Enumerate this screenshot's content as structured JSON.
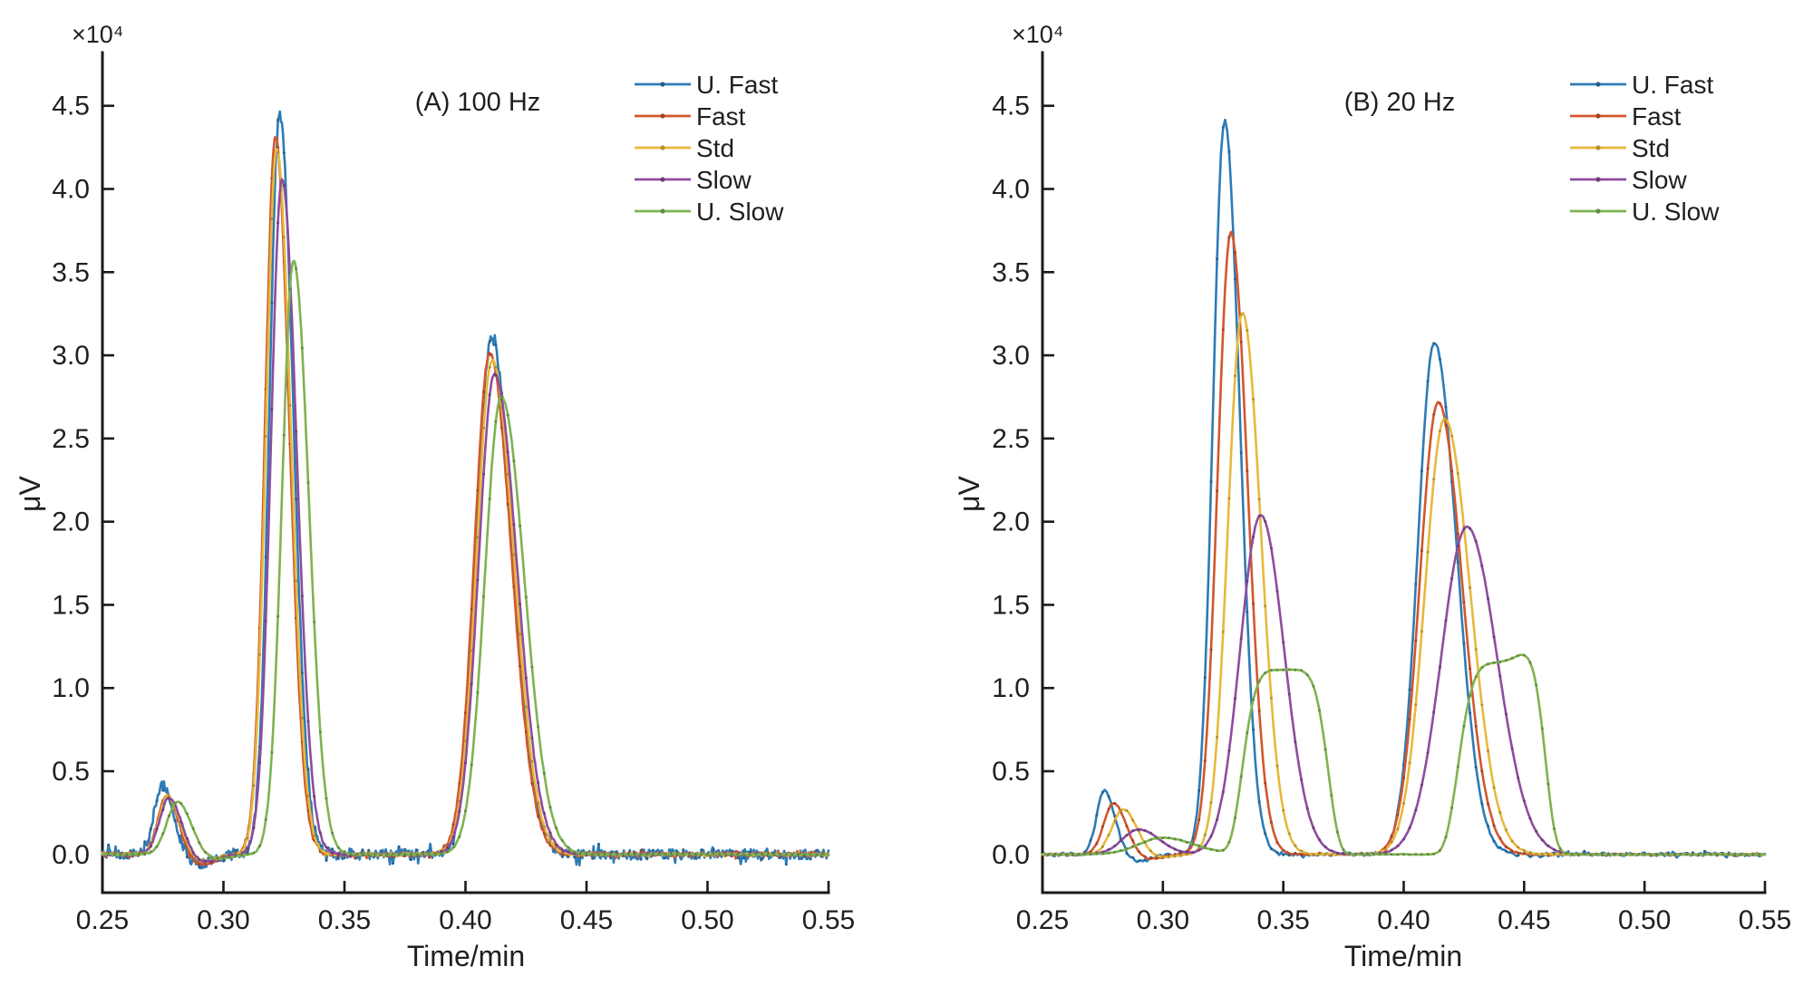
{
  "figure": {
    "description": "Two-panel chromatogram figure comparing detector filter speeds at two sampling rates",
    "series_names": [
      "U. Fast",
      "Fast",
      "Std",
      "Slow",
      "U. Slow"
    ]
  },
  "chart_data": [
    {
      "type": "line",
      "title": "(A) 100 Hz",
      "xlabel": "Time/min",
      "ylabel": "μV",
      "y_exponent_label": "×10⁴",
      "xlim": [
        0.25,
        0.55
      ],
      "ylim": [
        -0.23,
        4.82
      ],
      "xticks": [
        0.25,
        0.3,
        0.35,
        0.4,
        0.45,
        0.5,
        0.55
      ],
      "yticks": [
        0.0,
        0.5,
        1.0,
        1.5,
        2.0,
        2.5,
        3.0,
        3.5,
        4.0,
        4.5
      ],
      "grid": false,
      "legend_position": "upper-right, no box",
      "units_note": "y values in 1e4 microvolts",
      "series": [
        {
          "name": "U. Fast",
          "color": "#2E7BB5",
          "noise": 0.032,
          "samples": 720,
          "peaks": [
            {
              "shape": "gauss",
              "center": 0.2748,
              "height": 0.42,
              "sigma_l": 0.0034,
              "sigma_r": 0.0046
            },
            {
              "shape": "gauss",
              "center": 0.2895,
              "height": -0.055,
              "sigma_l": 0.005,
              "sigma_r": 0.006
            },
            {
              "shape": "gauss",
              "center": 0.3232,
              "height": 4.45,
              "sigma_l": 0.0042,
              "sigma_r": 0.0056
            },
            {
              "shape": "gauss",
              "center": 0.4107,
              "height": 3.1,
              "sigma_l": 0.0062,
              "sigma_r": 0.0088
            }
          ]
        },
        {
          "name": "Fast",
          "color": "#D2572D",
          "noise": 0.012,
          "samples": 720,
          "peaks": [
            {
              "shape": "gauss",
              "center": 0.2765,
              "height": 0.355,
              "sigma_l": 0.0036,
              "sigma_r": 0.0048
            },
            {
              "shape": "gauss",
              "center": 0.2905,
              "height": -0.06,
              "sigma_l": 0.005,
              "sigma_r": 0.006
            },
            {
              "shape": "gauss",
              "center": 0.3215,
              "height": 4.31,
              "sigma_l": 0.0043,
              "sigma_r": 0.0057
            },
            {
              "shape": "gauss",
              "center": 0.41,
              "height": 3.01,
              "sigma_l": 0.0063,
              "sigma_r": 0.0089
            }
          ]
        },
        {
          "name": "Std",
          "color": "#E6B93C",
          "noise": 0.008,
          "samples": 720,
          "peaks": [
            {
              "shape": "gauss",
              "center": 0.277,
              "height": 0.35,
              "sigma_l": 0.0037,
              "sigma_r": 0.0049
            },
            {
              "shape": "gauss",
              "center": 0.291,
              "height": -0.045,
              "sigma_l": 0.005,
              "sigma_r": 0.006
            },
            {
              "shape": "gauss",
              "center": 0.322,
              "height": 4.24,
              "sigma_l": 0.0044,
              "sigma_r": 0.0058
            },
            {
              "shape": "gauss",
              "center": 0.411,
              "height": 2.97,
              "sigma_l": 0.0064,
              "sigma_r": 0.009
            }
          ]
        },
        {
          "name": "Slow",
          "color": "#8E4D9E",
          "noise": 0.006,
          "samples": 720,
          "peaks": [
            {
              "shape": "gauss",
              "center": 0.2775,
              "height": 0.34,
              "sigma_l": 0.0039,
              "sigma_r": 0.0051
            },
            {
              "shape": "gauss",
              "center": 0.2915,
              "height": -0.05,
              "sigma_l": 0.005,
              "sigma_r": 0.006
            },
            {
              "shape": "gauss",
              "center": 0.3242,
              "height": 4.06,
              "sigma_l": 0.0046,
              "sigma_r": 0.006
            },
            {
              "shape": "gauss",
              "center": 0.412,
              "height": 2.89,
              "sigma_l": 0.0066,
              "sigma_r": 0.0092
            }
          ]
        },
        {
          "name": "U. Slow",
          "color": "#7FB351",
          "noise": 0.004,
          "samples": 720,
          "peaks": [
            {
              "shape": "gauss",
              "center": 0.281,
              "height": 0.315,
              "sigma_l": 0.0044,
              "sigma_r": 0.0056
            },
            {
              "shape": "gauss",
              "center": 0.296,
              "height": -0.03,
              "sigma_l": 0.005,
              "sigma_r": 0.006
            },
            {
              "shape": "gauss",
              "center": 0.329,
              "height": 3.57,
              "sigma_l": 0.0048,
              "sigma_r": 0.0062
            },
            {
              "shape": "gauss",
              "center": 0.4148,
              "height": 2.75,
              "sigma_l": 0.0068,
              "sigma_r": 0.0095
            }
          ]
        }
      ]
    },
    {
      "type": "line",
      "title": "(B) 20 Hz",
      "xlabel": "Time/min",
      "ylabel": "μV",
      "y_exponent_label": "×10⁴",
      "xlim": [
        0.25,
        0.55
      ],
      "ylim": [
        -0.23,
        4.82
      ],
      "xticks": [
        0.25,
        0.3,
        0.35,
        0.4,
        0.45,
        0.5,
        0.55
      ],
      "yticks": [
        0.0,
        0.5,
        1.0,
        1.5,
        2.0,
        2.5,
        3.0,
        3.5,
        4.0,
        4.5
      ],
      "grid": false,
      "legend_position": "upper-right, no box",
      "units_note": "y values in 1e4 microvolts",
      "series": [
        {
          "name": "U. Fast",
          "color": "#2E7BB5",
          "noise": 0.01,
          "samples": 360,
          "peaks": [
            {
              "shape": "gauss",
              "center": 0.2757,
              "height": 0.38,
              "sigma_l": 0.0032,
              "sigma_r": 0.0044
            },
            {
              "shape": "gauss",
              "center": 0.29,
              "height": -0.04,
              "sigma_l": 0.005,
              "sigma_r": 0.006
            },
            {
              "shape": "gauss",
              "center": 0.3256,
              "height": 4.41,
              "sigma_l": 0.0048,
              "sigma_r": 0.0063
            },
            {
              "shape": "gauss",
              "center": 0.4127,
              "height": 3.08,
              "sigma_l": 0.0068,
              "sigma_r": 0.0092
            }
          ]
        },
        {
          "name": "Fast",
          "color": "#D2572D",
          "noise": 0.004,
          "samples": 360,
          "peaks": [
            {
              "shape": "gauss",
              "center": 0.2795,
              "height": 0.31,
              "sigma_l": 0.004,
              "sigma_r": 0.0052
            },
            {
              "shape": "gauss",
              "center": 0.294,
              "height": -0.03,
              "sigma_l": 0.005,
              "sigma_r": 0.006
            },
            {
              "shape": "gauss",
              "center": 0.3282,
              "height": 3.74,
              "sigma_l": 0.0055,
              "sigma_r": 0.0069
            },
            {
              "shape": "gauss",
              "center": 0.4143,
              "height": 2.72,
              "sigma_l": 0.0076,
              "sigma_r": 0.0099
            }
          ]
        },
        {
          "name": "Std",
          "color": "#E6B93C",
          "noise": 0.003,
          "samples": 360,
          "peaks": [
            {
              "shape": "gauss",
              "center": 0.2835,
              "height": 0.27,
              "sigma_l": 0.0046,
              "sigma_r": 0.0058
            },
            {
              "shape": "gauss",
              "center": 0.298,
              "height": -0.02,
              "sigma_l": 0.005,
              "sigma_r": 0.006
            },
            {
              "shape": "gauss",
              "center": 0.333,
              "height": 3.26,
              "sigma_l": 0.006,
              "sigma_r": 0.0076
            },
            {
              "shape": "gauss",
              "center": 0.417,
              "height": 2.62,
              "sigma_l": 0.0082,
              "sigma_r": 0.0106
            }
          ]
        },
        {
          "name": "Slow",
          "color": "#8E4D9E",
          "noise": 0.002,
          "samples": 360,
          "peaks": [
            {
              "shape": "gauss",
              "center": 0.29,
              "height": 0.15,
              "sigma_l": 0.0068,
              "sigma_r": 0.0085
            },
            {
              "shape": "gauss",
              "center": 0.3406,
              "height": 2.04,
              "sigma_l": 0.0085,
              "sigma_r": 0.0097
            },
            {
              "shape": "gauss",
              "center": 0.4262,
              "height": 1.97,
              "sigma_l": 0.0106,
              "sigma_r": 0.0125
            }
          ]
        },
        {
          "name": "U. Slow",
          "color": "#7FB351",
          "noise": 0.0015,
          "samples": 360,
          "peaks": [
            {
              "shape": "gauss",
              "center": 0.3,
              "height": 0.1,
              "sigma_l": 0.01,
              "sigma_r": 0.013
            },
            {
              "shape": "flattop",
              "center": 0.351,
              "height": 1.11,
              "width_l": 0.019,
              "width_r": 0.0185,
              "power": 5
            },
            {
              "shape": "flattop",
              "center": 0.4425,
              "height": 1.15,
              "width_l": 0.021,
              "width_r": 0.017,
              "power": 5
            },
            {
              "shape": "gauss",
              "center": 0.4555,
              "height": 0.09,
              "sigma_l": 0.007,
              "sigma_r": 0.005
            }
          ]
        }
      ]
    }
  ]
}
